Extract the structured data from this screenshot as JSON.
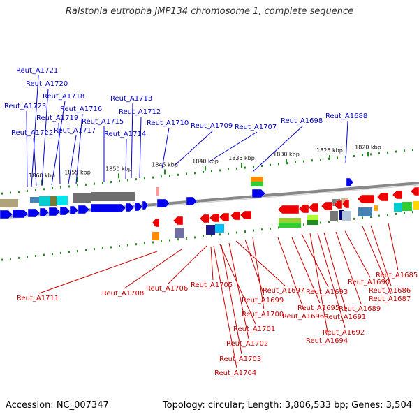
{
  "title": "Ralstonia eutropha JMP134 chromosome 1, complete sequence",
  "footer": {
    "accession": "Accession: NC_007347",
    "summary": "Topology: circular; Length: 3,806,533 bp; Genes: 3,504"
  },
  "colors": {
    "forward": "#0000ee",
    "reverse": "#ee0000",
    "backbone": "#888888",
    "ticks": "#228b22",
    "forward_label": "#0000cc",
    "reverse_label": "#cc0000"
  },
  "scale_labels": [
    "1860 kbp",
    "1855 kbp",
    "1850 kbp",
    "1845 kbp",
    "1840 kbp",
    "1835 kbp",
    "1830 kbp",
    "1825 kbp",
    "1820 kbp"
  ],
  "forward_genes": [
    "Reut_A1721",
    "Reut_A1720",
    "Reut_A1718",
    "Reut_A1723",
    "Reut_A1716",
    "Reut_A1719",
    "Reut_A1715",
    "Reut_A1722",
    "Reut_A1717",
    "Reut_A1713",
    "Reut_A1712",
    "Reut_A1714",
    "Reut_A1710",
    "Reut_A1709",
    "Reut_A1707",
    "Reut_A1698",
    "Reut_A1688"
  ],
  "reverse_genes": [
    "Reut_A1711",
    "Reut_A1708",
    "Reut_A1706",
    "Reut_A1705",
    "Reut_A1697",
    "Reut_A1699",
    "Reut_A1700",
    "Reut_A1701",
    "Reut_A1702",
    "Reut_A1703",
    "Reut_A1704",
    "Reut_A1693",
    "Reut_A1695",
    "Reut_A1696",
    "Reut_A1694",
    "Reut_A1692",
    "Reut_A1691",
    "Reut_A1689",
    "Reut_A1690",
    "Reut_A1687",
    "Reut_A1686",
    "Reut_A1685"
  ]
}
